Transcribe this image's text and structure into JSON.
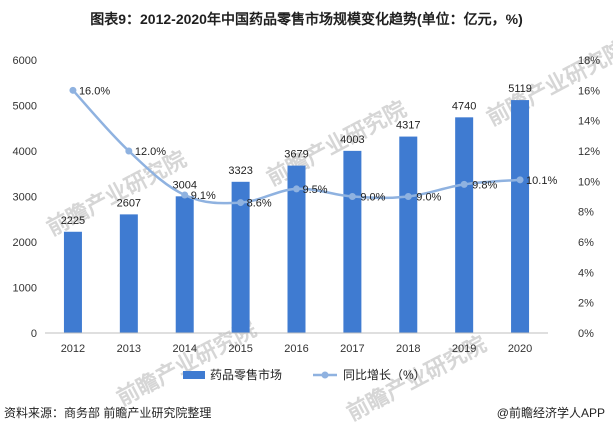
{
  "title": "图表9：2012-2020年中国药品零售市场规模变化趋势(单位：亿元，%)",
  "footer": {
    "source": "资料来源：商务部 前瞻产业研究院整理",
    "brand": "@前瞻经济学人APP"
  },
  "watermark": "前瞻产业研究院",
  "chart_data": {
    "type": "bar+line",
    "categories": [
      "2012",
      "2013",
      "2014",
      "2015",
      "2016",
      "2017",
      "2018",
      "2019",
      "2020"
    ],
    "series": [
      {
        "name": "药品零售市场",
        "type": "bar",
        "axis": "left",
        "values": [
          2225,
          2607,
          3004,
          3323,
          3679,
          4003,
          4317,
          4740,
          5119
        ],
        "labels": [
          "2225",
          "2607",
          "3004",
          "3323",
          "3679",
          "4003",
          "4317",
          "4740",
          "5119"
        ],
        "color": "#3f7bd1"
      },
      {
        "name": "同比增长（%）",
        "type": "line",
        "axis": "right",
        "values": [
          16.0,
          12.0,
          9.1,
          8.6,
          9.5,
          9.0,
          9.0,
          9.8,
          10.1
        ],
        "labels": [
          "16.0%",
          "12.0%",
          "9.1%",
          "8.6%",
          "9.5%",
          "9.0%",
          "9.0%",
          "9.8%",
          "10.1%"
        ],
        "color": "#8fb2e0"
      }
    ],
    "y_left": {
      "ylim": [
        0,
        6000
      ],
      "ticks": [
        "0",
        "1000",
        "2000",
        "3000",
        "4000",
        "5000",
        "6000"
      ]
    },
    "y_right": {
      "ylim": [
        0,
        18
      ],
      "ticks": [
        "0%",
        "2%",
        "4%",
        "6%",
        "8%",
        "10%",
        "12%",
        "14%",
        "16%",
        "18%"
      ]
    },
    "legend_position": "bottom",
    "grid": false
  }
}
